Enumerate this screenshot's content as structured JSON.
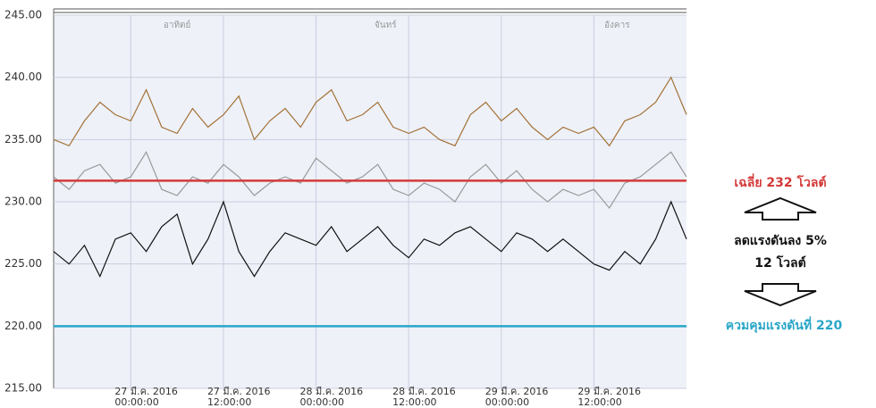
{
  "chart_data": {
    "type": "line",
    "x": [
      "2016-03-26T14:00",
      "2016-03-26T16:00",
      "2016-03-26T18:00",
      "2016-03-26T20:00",
      "2016-03-26T22:00",
      "2016-03-27T00:00",
      "2016-03-27T02:00",
      "2016-03-27T04:00",
      "2016-03-27T06:00",
      "2016-03-27T08:00",
      "2016-03-27T10:00",
      "2016-03-27T12:00",
      "2016-03-27T14:00",
      "2016-03-27T16:00",
      "2016-03-27T18:00",
      "2016-03-27T20:00",
      "2016-03-27T22:00",
      "2016-03-28T00:00",
      "2016-03-28T02:00",
      "2016-03-28T04:00",
      "2016-03-28T06:00",
      "2016-03-28T08:00",
      "2016-03-28T10:00",
      "2016-03-28T12:00",
      "2016-03-28T14:00",
      "2016-03-28T16:00",
      "2016-03-28T18:00",
      "2016-03-28T20:00",
      "2016-03-28T22:00",
      "2016-03-29T00:00",
      "2016-03-29T02:00",
      "2016-03-29T04:00",
      "2016-03-29T06:00",
      "2016-03-29T08:00",
      "2016-03-29T10:00",
      "2016-03-29T12:00",
      "2016-03-29T14:00",
      "2016-03-29T16:00",
      "2016-03-29T18:00",
      "2016-03-29T20:00",
      "2016-03-29T22:00",
      "2016-03-30T00:00"
    ],
    "series": [
      {
        "color": "#a47238",
        "values": [
          235,
          234.5,
          236.5,
          238,
          237,
          236.5,
          239,
          236,
          235.5,
          237.5,
          236,
          237,
          238.5,
          235,
          236.5,
          237.5,
          236,
          238,
          239,
          236.5,
          237,
          238,
          236,
          235.5,
          236,
          235,
          234.5,
          237,
          238,
          236.5,
          237.5,
          236,
          235,
          236,
          235.5,
          236,
          234.5,
          236.5,
          237,
          238,
          240,
          237
        ]
      },
      {
        "color": "#9a9a9a",
        "values": [
          232,
          231,
          232.5,
          233,
          231.5,
          232,
          234,
          231,
          230.5,
          232,
          231.5,
          233,
          232,
          230.5,
          231.5,
          232,
          231.5,
          233.5,
          232.5,
          231.5,
          232,
          233,
          231,
          230.5,
          231.5,
          231,
          230,
          232,
          233,
          231.5,
          232.5,
          231,
          230,
          231,
          230.5,
          231,
          229.5,
          231.5,
          232,
          233,
          234,
          232
        ]
      },
      {
        "color": "#111111",
        "values": [
          226,
          225,
          226.5,
          224,
          227,
          227.5,
          226,
          228,
          229,
          225,
          227,
          230,
          226,
          224,
          226,
          227.5,
          227,
          226.5,
          228,
          226,
          227,
          228,
          226.5,
          225.5,
          227,
          226.5,
          227.5,
          228,
          227,
          226,
          227.5,
          227,
          226,
          227,
          226,
          225,
          224.5,
          226,
          225,
          227,
          230,
          227
        ]
      }
    ],
    "reference_lines": [
      {
        "value": 231.7,
        "color": "#d43a3a"
      },
      {
        "value": 220,
        "color": "#2aa6c8"
      }
    ],
    "xlim": [
      "2016-03-26T14:00",
      "2016-03-30T00:00"
    ],
    "xticks": [
      {
        "value": "2016-03-27T00:00",
        "label": [
          "27 มี.ค. 2016",
          "00:00:00"
        ]
      },
      {
        "value": "2016-03-27T12:00",
        "label": [
          "27 มี.ค. 2016",
          "12:00:00"
        ]
      },
      {
        "value": "2016-03-28T00:00",
        "label": [
          "28 มี.ค. 2016",
          "00:00:00"
        ]
      },
      {
        "value": "2016-03-28T12:00",
        "label": [
          "28 มี.ค. 2016",
          "12:00:00"
        ]
      },
      {
        "value": "2016-03-29T00:00",
        "label": [
          "29 มี.ค. 2016",
          "00:00:00"
        ]
      },
      {
        "value": "2016-03-29T12:00",
        "label": [
          "29 มี.ค. 2016",
          "12:00:00"
        ]
      }
    ],
    "day_labels": [
      {
        "x": "2016-03-27T06:00",
        "text": "อาทิตย์"
      },
      {
        "x": "2016-03-28T09:00",
        "text": "จันทร์"
      },
      {
        "x": "2016-03-29T15:00",
        "text": "อังคาร"
      }
    ],
    "ylim": [
      215,
      245
    ],
    "yticks": [
      {
        "value": 215,
        "label": "215.00"
      },
      {
        "value": 220,
        "label": "220.00"
      },
      {
        "value": 225,
        "label": "225.00"
      },
      {
        "value": 230,
        "label": "230.00"
      },
      {
        "value": 235,
        "label": "235.00"
      },
      {
        "value": 240,
        "label": "240.00"
      },
      {
        "value": 245,
        "label": "245.00"
      }
    ],
    "grid": true,
    "annotations": [
      "เฉลี่ย 232 โวลต์",
      "ลดแรงดันลง 5%",
      "12 โวลต์",
      "ควมคุมแรงดันที่ 220"
    ]
  }
}
